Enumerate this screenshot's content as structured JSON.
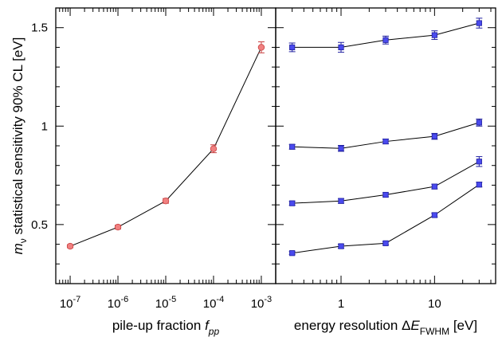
{
  "chart_data": [
    {
      "type": "scatter",
      "panel": "left",
      "xscale": "log",
      "xlim": [
        5e-08,
        0.002
      ],
      "ylim": [
        0.2,
        1.6
      ],
      "xticks": [
        {
          "value": 1e-07,
          "base": "10",
          "exp": "-7"
        },
        {
          "value": 1e-06,
          "base": "10",
          "exp": "-6"
        },
        {
          "value": 1e-05,
          "base": "10",
          "exp": "-5"
        },
        {
          "value": 0.0001,
          "base": "10",
          "exp": "-4"
        },
        {
          "value": 0.001,
          "base": "10",
          "exp": "-3"
        }
      ],
      "yticks": [
        {
          "value": 0.5,
          "label": "0.5"
        },
        {
          "value": 1,
          "label": "1"
        },
        {
          "value": 1.5,
          "label": "1.5"
        }
      ],
      "xlabel": {
        "text": "pile-up fraction ",
        "symbol": "f",
        "sub": "pp"
      },
      "ylabel": {
        "symbol": "m",
        "sub": "ν",
        "text": " statistical sensitivity 90% CL [eV]"
      },
      "grid": false,
      "marker_color": "#f08080",
      "marker_edge": "#c84040",
      "series": [
        {
          "x": [
            1e-07,
            1e-06,
            1e-05,
            0.0001,
            0.001
          ],
          "y": [
            0.39,
            0.487,
            0.62,
            0.885,
            1.4
          ],
          "err": [
            0.008,
            0.01,
            0.012,
            0.02,
            0.028
          ]
        }
      ]
    },
    {
      "type": "scatter",
      "panel": "right",
      "xscale": "log",
      "xlim": [
        0.2,
        45
      ],
      "ylim": [
        0.2,
        1.6
      ],
      "xticks": [
        {
          "value": 1,
          "label": "1"
        },
        {
          "value": 10,
          "label": "10"
        }
      ],
      "xlabel": {
        "text": "energy resolution Δ",
        "symbol": "E",
        "sub": "FWHM",
        "unit": " [eV]"
      },
      "grid": false,
      "marker_color": "#4a4aee",
      "marker_edge": "#2020a0",
      "series": [
        {
          "x": [
            0.3,
            1,
            3,
            10,
            30
          ],
          "y": [
            1.4,
            1.4,
            1.437,
            1.462,
            1.523
          ],
          "err": [
            0.022,
            0.025,
            0.02,
            0.022,
            0.025
          ]
        },
        {
          "x": [
            0.3,
            1,
            3,
            10,
            30
          ],
          "y": [
            0.895,
            0.887,
            0.922,
            0.948,
            1.018
          ],
          "err": [
            0.012,
            0.015,
            0.012,
            0.015,
            0.018
          ]
        },
        {
          "x": [
            0.3,
            1,
            3,
            10,
            30
          ],
          "y": [
            0.608,
            0.62,
            0.651,
            0.693,
            0.82
          ],
          "err": [
            0.01,
            0.012,
            0.01,
            0.012,
            0.025
          ]
        },
        {
          "x": [
            0.3,
            1,
            3,
            10,
            30
          ],
          "y": [
            0.355,
            0.39,
            0.405,
            0.548,
            0.703
          ],
          "err": [
            0.008,
            0.01,
            0.008,
            0.01,
            0.012
          ]
        }
      ]
    }
  ]
}
